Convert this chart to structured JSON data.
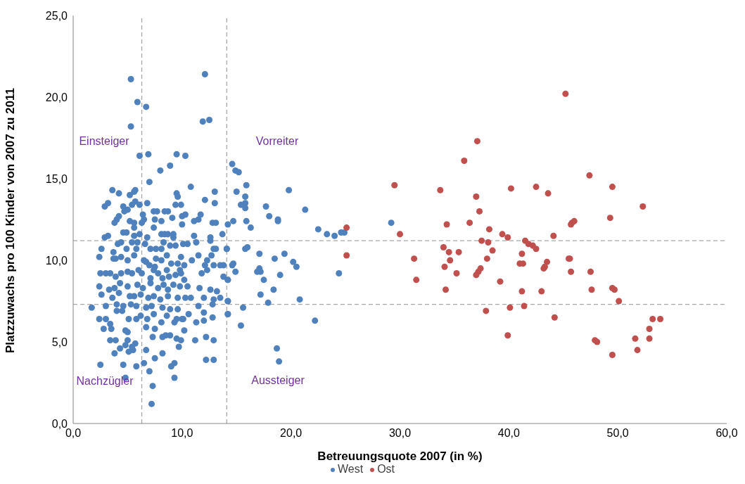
{
  "chart_data": {
    "type": "scatter",
    "xlabel": "Betreuungsquote 2007 (in %)",
    "ylabel": "Platzzuwachs pro 100 Kinder von 2007 zu 2011",
    "xlim": [
      0,
      60
    ],
    "ylim": [
      0,
      25
    ],
    "xticks": [
      {
        "value": 0,
        "label": "0,0"
      },
      {
        "value": 10,
        "label": "10,0"
      },
      {
        "value": 20,
        "label": "20,0"
      },
      {
        "value": 30,
        "label": "30,0"
      },
      {
        "value": 40,
        "label": "40,0"
      },
      {
        "value": 50,
        "label": "50,0"
      },
      {
        "value": 60,
        "label": "60,0"
      }
    ],
    "yticks": [
      {
        "value": 0,
        "label": "0,0"
      },
      {
        "value": 5,
        "label": "5,0"
      },
      {
        "value": 10,
        "label": "10,0"
      },
      {
        "value": 15,
        "label": "15,0"
      },
      {
        "value": 20,
        "label": "20,0"
      },
      {
        "value": 25,
        "label": "25,0"
      }
    ],
    "grid": false,
    "legend": "bottom",
    "marker": "circle",
    "ref_lines": [
      {
        "axis": "x",
        "value": 6.3,
        "color": "#a6a6a6",
        "line_style": "dashed"
      },
      {
        "axis": "x",
        "value": 14.1,
        "color": "#a6a6a6",
        "line_style": "dashed"
      },
      {
        "axis": "y",
        "value": 11.2,
        "color": "#a6a6a6",
        "line_style": "dashed"
      },
      {
        "axis": "y",
        "value": 7.3,
        "color": "#a6a6a6",
        "line_style": "dashed"
      }
    ],
    "annotations": [
      "Einsteiger",
      "Vorreiter",
      "Nachzügler",
      "Aussteiger"
    ],
    "series": [
      {
        "name": "West",
        "color": "#4f81bd",
        "x": [
          14.6,
          14.9,
          15.2,
          15.9,
          15.0,
          15.8,
          19.8,
          15.8,
          15.4,
          15.8,
          17.7,
          21.3,
          18.0,
          18.8,
          18.8,
          14.7,
          15.9,
          14.2,
          16.3,
          22.5,
          23.3,
          24.0,
          24.6,
          24.9,
          29.2,
          14.1,
          15.8,
          16.0,
          17.1,
          19.4,
          18.5,
          20.2,
          20.5,
          14.6,
          14.7,
          17.1,
          17.2,
          16.9,
          14.9,
          19.0,
          24.4,
          14.2,
          17.5,
          18.4,
          17.2,
          20.8,
          17.9,
          14.2,
          15.6,
          14.2,
          22.2,
          15.4,
          18.7,
          18.9,
          5.3,
          12.1,
          5.9,
          6.7,
          5.3,
          11.9,
          12.5,
          6.1,
          6.9,
          9.5,
          10.3,
          8.9,
          8.0,
          7.0,
          10.8,
          3.6,
          4.2,
          5.2,
          5.6,
          5.7,
          5.7,
          5.4,
          2.9,
          3.2,
          4.6,
          6.1,
          6.8,
          9.5,
          9.6,
          9.4,
          9.9,
          12.1,
          13.0,
          13.0,
          4.7,
          5.0,
          4.2,
          4.0,
          3.8,
          7.4,
          7.7,
          8.4,
          8.7,
          6.4,
          6.5,
          7.5,
          9.1,
          10.0,
          10.3,
          11.7,
          10.0,
          11.1,
          11.5,
          5.2,
          5.6,
          5.6,
          6.3,
          8.1,
          7.4,
          12.8,
          13.1,
          2.9,
          3.2,
          4.6,
          4.9,
          5.6,
          6.1,
          6.8,
          8.1,
          8.4,
          8.7,
          9.2,
          9.2,
          11.1,
          13.7,
          12.6,
          2.6,
          4.1,
          4.4,
          4.9,
          5.4,
          5.9,
          5.8,
          6.6,
          7.1,
          7.6,
          8.1,
          8.3,
          8.9,
          9.4,
          10.1,
          10.5,
          11.3,
          12.6,
          12.9,
          13.1,
          14.1,
          2.4,
          3.7,
          3.7,
          3.9,
          4.4,
          5.0,
          5.6,
          6.5,
          6.7,
          7.0,
          7.5,
          7.6,
          8.1,
          8.6,
          9.0,
          9.6,
          9.9,
          10.2,
          10.9,
          11.5,
          12.1,
          12.3,
          12.7,
          12.9,
          13.5,
          13.8,
          2.5,
          3.0,
          3.4,
          3.9,
          4.4,
          5.0,
          5.4,
          6.0,
          6.3,
          7.1,
          7.4,
          7.8,
          8.2,
          8.6,
          8.8,
          9.4,
          9.8,
          9.9,
          10.2,
          11.8,
          12.3,
          13.8,
          14.2,
          2.4,
          3.3,
          3.8,
          4.3,
          5.0,
          5.9,
          6.4,
          7.1,
          7.8,
          8.3,
          8.7,
          9.2,
          9.8,
          10.5,
          11.6,
          12.6,
          13.2,
          2.6,
          3.6,
          4.2,
          5.2,
          5.6,
          6.2,
          6.9,
          7.4,
          8.0,
          8.7,
          9.6,
          10.3,
          10.8,
          12.0,
          12.9,
          13.5,
          14.2,
          1.7,
          3.0,
          4.0,
          4.6,
          5.3,
          5.8,
          6.7,
          7.2,
          8.2,
          8.9,
          9.6,
          10.0,
          10.6,
          11.5,
          12.0,
          12.8,
          14.2,
          2.4,
          3.0,
          3.4,
          2.8,
          4.0,
          4.5,
          5.1,
          5.8,
          6.2,
          6.8,
          7.4,
          8.1,
          8.6,
          9.3,
          9.5,
          10.1,
          11.3,
          12.0,
          12.8,
          3.5,
          4.8,
          5.0,
          3.4,
          3.9,
          5.0,
          5.7,
          6.7,
          7.3,
          7.5,
          8.2,
          8.5,
          8.9,
          9.5,
          9.9,
          10.2,
          11.2,
          12.2,
          12.9,
          4.8,
          5.4,
          3.8,
          4.3,
          5.1,
          5.5,
          6.7,
          9.7,
          8.2,
          7.5,
          12.2,
          12.9,
          2.5,
          4.6,
          5.8,
          6.5,
          7.0,
          9.0,
          9.3,
          9.3,
          4.8,
          7.3,
          7.2
        ],
        "values": [
          15.9,
          15.5,
          15.4,
          14.6,
          14.2,
          13.9,
          14.3,
          13.5,
          13.4,
          13.2,
          13.3,
          13.1,
          12.7,
          12.5,
          12.4,
          12.4,
          12.4,
          12.2,
          12.0,
          11.9,
          11.6,
          11.5,
          11.7,
          11.7,
          12.3,
          10.7,
          10.7,
          10.8,
          10.4,
          10.4,
          10.1,
          9.9,
          9.6,
          9.7,
          9.8,
          9.5,
          9.3,
          9.3,
          9.3,
          9.1,
          9.2,
          8.8,
          8.8,
          8.2,
          7.9,
          7.6,
          7.4,
          7.5,
          7.1,
          6.7,
          6.3,
          6.0,
          4.6,
          3.8,
          21.1,
          21.4,
          19.7,
          19.4,
          18.2,
          18.5,
          18.6,
          16.4,
          16.5,
          16.5,
          16.4,
          15.8,
          15.5,
          14.8,
          14.5,
          14.3,
          14.1,
          14.0,
          14.2,
          14.3,
          13.6,
          13.4,
          13.3,
          13.5,
          13.3,
          13.4,
          13.5,
          14.1,
          13.9,
          13.4,
          13.4,
          13.7,
          14.2,
          13.5,
          13.0,
          13.1,
          12.7,
          12.5,
          12.3,
          13.0,
          13.0,
          13.0,
          13.0,
          12.8,
          12.5,
          12.5,
          12.6,
          12.7,
          12.8,
          12.8,
          12.2,
          12.4,
          12.5,
          12.4,
          12.3,
          12.0,
          12.3,
          12.4,
          12.0,
          12.3,
          12.3,
          11.4,
          11.5,
          11.7,
          11.7,
          11.5,
          11.6,
          11.4,
          11.6,
          11.6,
          11.6,
          11.6,
          11.4,
          11.5,
          11.6,
          11.4,
          10.7,
          11.0,
          11.1,
          10.7,
          11.1,
          11.1,
          10.7,
          11.0,
          10.7,
          10.7,
          10.7,
          11.1,
          10.9,
          10.9,
          11.0,
          11.0,
          11.1,
          11.2,
          10.7,
          10.7,
          10.7,
          10.2,
          10.5,
          10.1,
          10.1,
          10.2,
          10.0,
          10.3,
          10.0,
          9.9,
          9.7,
          9.6,
          10.1,
          10.0,
          10.3,
          9.8,
          9.8,
          10.2,
          9.7,
          10.0,
          10.3,
          9.7,
          10.0,
          10.3,
          9.7,
          9.7,
          9.7,
          9.2,
          9.2,
          9.2,
          9.0,
          9.2,
          9.3,
          9.2,
          9.4,
          9.2,
          8.9,
          9.4,
          9.2,
          8.9,
          9.4,
          9.0,
          9.1,
          9.4,
          9.2,
          8.8,
          9.2,
          9.4,
          9.0,
          8.8,
          8.4,
          8.2,
          8.3,
          8.6,
          8.4,
          8.5,
          8.3,
          8.6,
          8.3,
          8.5,
          8.2,
          8.5,
          8.4,
          8.4,
          8.3,
          8.2,
          8.1,
          7.9,
          7.7,
          8.0,
          7.8,
          7.8,
          7.9,
          7.7,
          7.8,
          7.6,
          7.8,
          7.7,
          7.7,
          7.7,
          7.7,
          7.6,
          7.7,
          7.5,
          7.1,
          7.2,
          7.3,
          7.2,
          7.3,
          7.2,
          7.1,
          7.2,
          7.1,
          7.0,
          7.0,
          6.4,
          6.7,
          7.2,
          6.8,
          7.3,
          6.7,
          6.4,
          6.4,
          6.1,
          5.8,
          6.9,
          6.9,
          6.4,
          6.4,
          6.6,
          6.4,
          6.7,
          6.2,
          6.6,
          6.2,
          6.4,
          6.4,
          6.2,
          6.3,
          6.5,
          5.8,
          5.7,
          5.6,
          5.1,
          5.1,
          5.1,
          4.9,
          5.9,
          5.3,
          5.8,
          5.3,
          5.4,
          5.4,
          5.2,
          5.1,
          5.7,
          5.1,
          5.3,
          5.1,
          4.8,
          4.7,
          4.3,
          4.6,
          4.4,
          4.5,
          4.5,
          4.7,
          4.3,
          4.0,
          3.9,
          3.9,
          3.6,
          3.6,
          3.5,
          3.7,
          3.2,
          3.5,
          3.7,
          2.8,
          2.8,
          2.3,
          1.2
        ]
      },
      {
        "name": "Ost",
        "color": "#c0504d",
        "x": [
          45.2,
          37.1,
          35.9,
          47.4,
          29.5,
          33.7,
          40.2,
          42.5,
          49.5,
          43.6,
          37.0,
          37.3,
          52.3,
          49.3,
          34.3,
          36.4,
          45.7,
          45.8,
          46.0,
          30.0,
          38.2,
          39.4,
          39.9,
          44.1,
          37.5,
          38.1,
          41.5,
          41.8,
          42.2,
          42.5,
          34.0,
          34.5,
          35.4,
          38.5,
          41.2,
          31.3,
          34.6,
          38.0,
          45.5,
          45.6,
          41.0,
          41.3,
          43.5,
          43.2,
          43.3,
          34.1,
          37.4,
          37.2,
          37.0,
          35.2,
          45.7,
          47.5,
          31.5,
          39.2,
          34.2,
          41.2,
          43.0,
          47.6,
          49.5,
          49.7,
          50.1,
          37.9,
          40.1,
          41.4,
          44.2,
          53.2,
          53.9,
          52.9,
          39.9,
          47.9,
          48.1,
          51.6,
          52.9,
          51.8,
          49.5,
          25.1,
          25.1
        ],
        "values": [
          20.2,
          17.3,
          16.1,
          15.2,
          14.6,
          14.3,
          14.4,
          14.5,
          14.5,
          14.1,
          13.9,
          13.0,
          13.3,
          12.6,
          12.2,
          12.3,
          12.2,
          12.3,
          12.4,
          11.6,
          11.9,
          11.6,
          11.4,
          11.5,
          11.2,
          11.1,
          11.2,
          11.0,
          10.9,
          10.7,
          10.8,
          10.5,
          10.5,
          10.6,
          10.4,
          10.1,
          10.0,
          10.1,
          10.1,
          10.1,
          9.8,
          9.8,
          9.9,
          9.5,
          9.6,
          9.6,
          9.5,
          9.3,
          9.1,
          9.2,
          9.3,
          9.3,
          8.8,
          8.7,
          8.2,
          8.1,
          8.1,
          8.2,
          8.3,
          8.2,
          7.5,
          6.9,
          7.1,
          7.2,
          6.5,
          6.4,
          6.4,
          5.8,
          5.4,
          5.1,
          5.0,
          5.2,
          5.2,
          4.5,
          4.2,
          12.0,
          10.3
        ]
      }
    ]
  }
}
